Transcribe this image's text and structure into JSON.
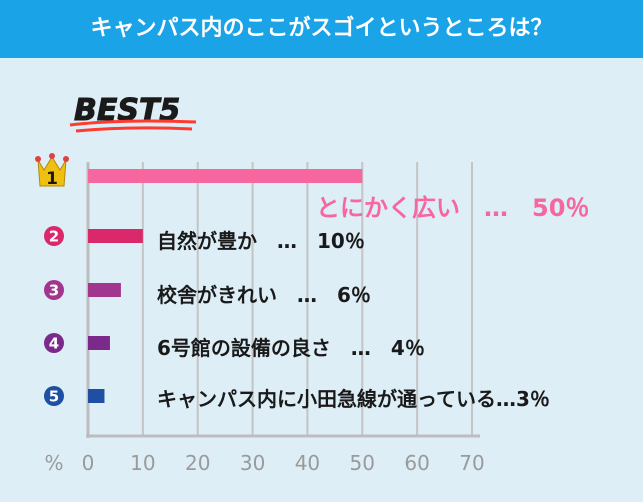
{
  "header": {
    "title": "キャンパス内のここがスゴイというところは？"
  },
  "badge": {
    "text": "BEST5"
  },
  "chart_data": {
    "type": "bar",
    "orientation": "horizontal",
    "categories": [
      "1",
      "2",
      "3",
      "4",
      "5"
    ],
    "labels": [
      "とにかく広い　…　50％",
      "自然が豊か　…　10％",
      "校舎がきれい　…　6％",
      "6号館の設備の良さ　…　4％",
      "キャンパス内に小田急線が通っている…3％"
    ],
    "values": [
      50,
      10,
      6,
      4,
      3
    ],
    "colors": [
      "#f7679f",
      "#d9296a",
      "#a2358e",
      "#7b2a8c",
      "#1e4fa3"
    ],
    "rank_colors": [
      "#f0c010",
      "#d9296a",
      "#a2358e",
      "#7b2a8c",
      "#1e4fa3"
    ],
    "x_axis_symbol": "%",
    "xlim": [
      0,
      70
    ],
    "xticks": [
      0,
      10,
      20,
      30,
      40,
      50,
      60,
      70
    ],
    "grid": true
  }
}
